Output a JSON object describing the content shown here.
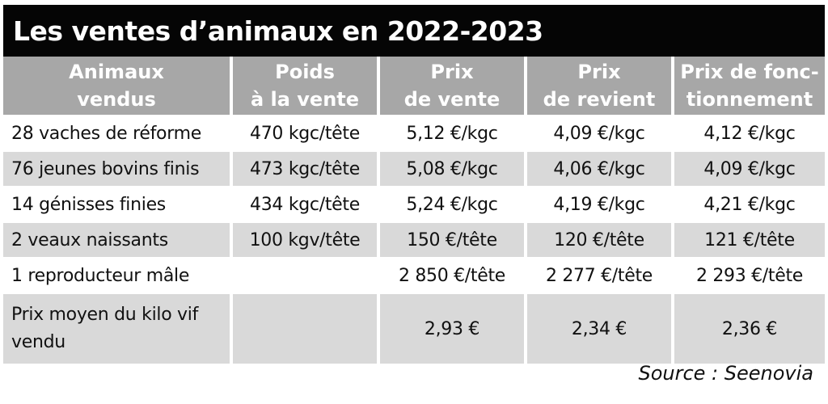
{
  "title": "Les ventes d’animaux en 2022-2023",
  "headers": [
    [
      "Animaux",
      "vendus"
    ],
    [
      "Poids",
      "à la vente"
    ],
    [
      "Prix",
      "de vente"
    ],
    [
      "Prix",
      "de revient"
    ],
    [
      "Prix de fonc-",
      "tionnement"
    ]
  ],
  "rows": [
    [
      "28 vaches de réforme",
      "470 kgc/tête",
      "5,12 €/kgc",
      "4,09 €/kgc",
      "4,12 €/kgc"
    ],
    [
      "76 jeunes bovins finis",
      "473 kgc/tête",
      "5,08 €/kgc",
      "4,06 €/kgc",
      "4,09 €/kgc"
    ],
    [
      "14 génisses finies",
      "434 kgc/tête",
      "5,24 €/kgc",
      "4,19 €/kgc",
      "4,21 €/kgc"
    ],
    [
      "2 veaux naissants",
      "100 kgv/tête",
      "150 €/tête",
      "120 €/tête",
      "121 €/tête"
    ],
    [
      "1 reproducteur mâle",
      "",
      "2 850 €/tête",
      "2 277 €/tête",
      "2 293 €/tête"
    ],
    [
      "Prix moyen du kilo vif vendu",
      "",
      "2,93 €",
      "2,34 €",
      "2,36 €"
    ]
  ],
  "source": "Source : Seenovia",
  "colors": {
    "title_bg": "#050505",
    "header_bg": "#a7a7a7",
    "row_shade": "#d9d9d9"
  }
}
